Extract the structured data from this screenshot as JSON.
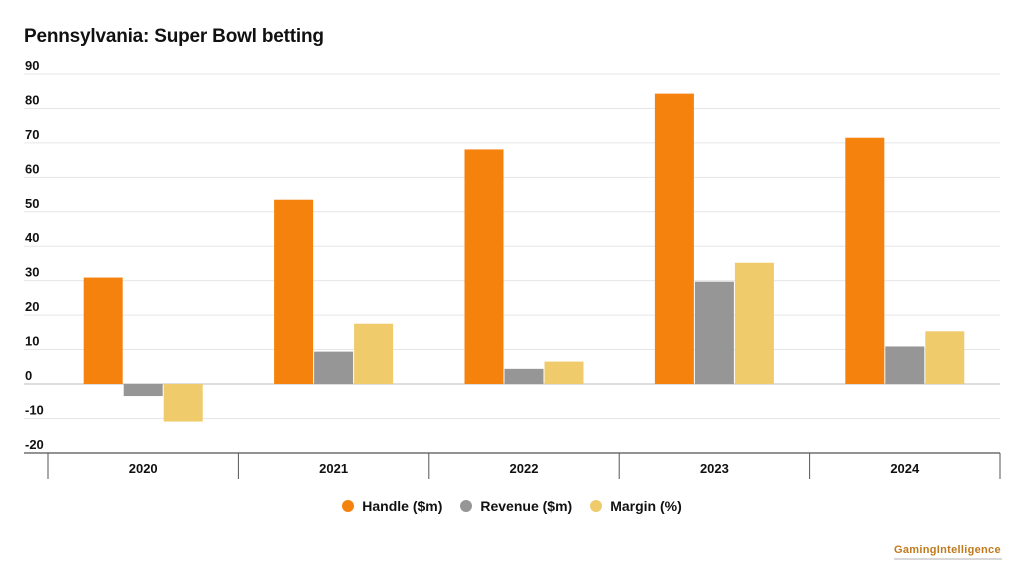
{
  "brand": {
    "logo_text": "GamingIntelligence",
    "accent": "#c07a1e"
  },
  "chart_data": {
    "type": "bar",
    "title": "Pennsylvania: Super Bowl betting",
    "xlabel": "",
    "ylabel": "",
    "categories": [
      "2020",
      "2021",
      "2022",
      "2023",
      "2024"
    ],
    "series": [
      {
        "name": "Handle ($m)",
        "color": "#f5820d",
        "values": [
          30.9,
          53.5,
          68.1,
          84.3,
          71.5
        ]
      },
      {
        "name": "Revenue ($m)",
        "color": "#969696",
        "values": [
          -3.5,
          9.4,
          4.4,
          29.7,
          10.9
        ]
      },
      {
        "name": "Margin (%)",
        "color": "#efcb6b",
        "values": [
          -10.9,
          17.5,
          6.5,
          35.2,
          15.3
        ]
      }
    ],
    "ylim": [
      -20,
      90
    ],
    "yticks": [
      "90",
      "80",
      "70",
      "60",
      "50",
      "40",
      "30",
      "20",
      "10",
      "0",
      "-10",
      "-20"
    ],
    "grid": true,
    "legend": "bottom-center"
  }
}
